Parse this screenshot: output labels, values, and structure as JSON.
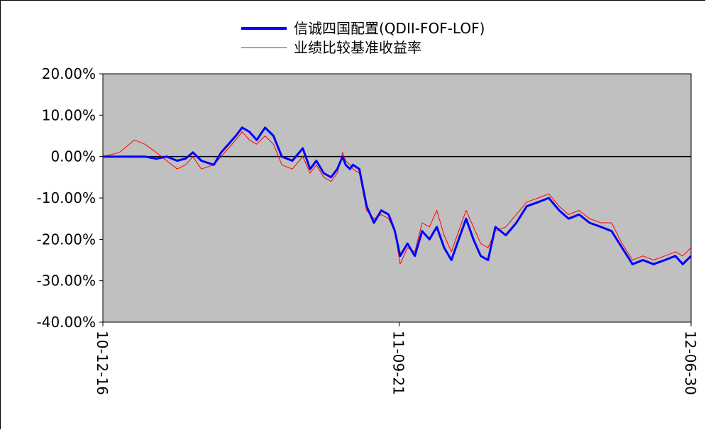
{
  "chart_data": {
    "type": "line",
    "title": "",
    "xlabel": "",
    "ylabel": "",
    "ylim": [
      -40,
      20
    ],
    "y_unit": "%",
    "yticks": [
      "20.00%",
      "10.00%",
      "0.00%",
      "-10.00%",
      "-20.00%",
      "-30.00%",
      "-40.00%"
    ],
    "ytick_values": [
      20,
      10,
      0,
      -10,
      -20,
      -30,
      -40
    ],
    "xticks": [
      "10-12-16",
      "11-09-21",
      "12-06-30"
    ],
    "x_range": [
      "2010-12-16",
      "2012-06-30"
    ],
    "legend_position": "top-center",
    "grid": false,
    "background_color": "#c0c0c0",
    "series": [
      {
        "name": "信诚四国配置(QDII-FOF-LOF)",
        "color": "#0000ff",
        "x": [
          "2010-12-16",
          "2011-01-01",
          "2011-01-15",
          "2011-01-25",
          "2011-02-05",
          "2011-02-15",
          "2011-02-25",
          "2011-03-05",
          "2011-03-12",
          "2011-03-20",
          "2011-04-01",
          "2011-04-08",
          "2011-04-15",
          "2011-04-22",
          "2011-04-28",
          "2011-05-05",
          "2011-05-12",
          "2011-05-20",
          "2011-05-28",
          "2011-06-05",
          "2011-06-15",
          "2011-06-25",
          "2011-07-02",
          "2011-07-08",
          "2011-07-15",
          "2011-07-22",
          "2011-07-28",
          "2011-08-02",
          "2011-08-05",
          "2011-08-09",
          "2011-08-12",
          "2011-08-18",
          "2011-08-25",
          "2011-09-01",
          "2011-09-08",
          "2011-09-15",
          "2011-09-21",
          "2011-09-26",
          "2011-10-03",
          "2011-10-10",
          "2011-10-17",
          "2011-10-24",
          "2011-10-31",
          "2011-11-07",
          "2011-11-14",
          "2011-11-21",
          "2011-11-28",
          "2011-12-05",
          "2011-12-12",
          "2011-12-19",
          "2011-12-26",
          "2012-01-05",
          "2012-01-15",
          "2012-01-25",
          "2012-02-05",
          "2012-02-15",
          "2012-02-25",
          "2012-03-05",
          "2012-03-15",
          "2012-03-25",
          "2012-04-05",
          "2012-04-15",
          "2012-04-25",
          "2012-05-05",
          "2012-05-15",
          "2012-05-25",
          "2012-06-05",
          "2012-06-15",
          "2012-06-22",
          "2012-06-30"
        ],
        "values": [
          0,
          0,
          0,
          0,
          -0.5,
          0,
          -1,
          -0.5,
          1,
          -1,
          -2,
          1,
          3,
          5,
          7,
          6,
          4,
          7,
          5,
          0,
          -1,
          2,
          -3,
          -1,
          -4,
          -5,
          -3,
          0,
          -2,
          -3,
          -2,
          -3,
          -12,
          -16,
          -13,
          -14,
          -18,
          -24,
          -21,
          -24,
          -18,
          -20,
          -17,
          -22,
          -25,
          -20,
          -15,
          -20,
          -24,
          -25,
          -17,
          -19,
          -16,
          -12,
          -11,
          -10,
          -13,
          -15,
          -14,
          -16,
          -17,
          -18,
          -22,
          -26,
          -25,
          -26,
          -25,
          -24,
          -26,
          -24
        ]
      },
      {
        "name": "业绩比较基准收益率",
        "color": "#ff0000",
        "x": [
          "2010-12-16",
          "2011-01-01",
          "2011-01-15",
          "2011-01-25",
          "2011-02-05",
          "2011-02-15",
          "2011-02-25",
          "2011-03-05",
          "2011-03-12",
          "2011-03-20",
          "2011-04-01",
          "2011-04-08",
          "2011-04-15",
          "2011-04-22",
          "2011-04-28",
          "2011-05-05",
          "2011-05-12",
          "2011-05-20",
          "2011-05-28",
          "2011-06-05",
          "2011-06-15",
          "2011-06-25",
          "2011-07-02",
          "2011-07-08",
          "2011-07-15",
          "2011-07-22",
          "2011-07-28",
          "2011-08-02",
          "2011-08-05",
          "2011-08-09",
          "2011-08-12",
          "2011-08-18",
          "2011-08-25",
          "2011-09-01",
          "2011-09-08",
          "2011-09-15",
          "2011-09-21",
          "2011-09-26",
          "2011-10-03",
          "2011-10-10",
          "2011-10-17",
          "2011-10-24",
          "2011-10-31",
          "2011-11-07",
          "2011-11-14",
          "2011-11-21",
          "2011-11-28",
          "2011-12-05",
          "2011-12-12",
          "2011-12-19",
          "2011-12-26",
          "2012-01-05",
          "2012-01-15",
          "2012-01-25",
          "2012-02-05",
          "2012-02-15",
          "2012-02-25",
          "2012-03-05",
          "2012-03-15",
          "2012-03-25",
          "2012-04-05",
          "2012-04-15",
          "2012-04-25",
          "2012-05-05",
          "2012-05-15",
          "2012-05-25",
          "2012-06-05",
          "2012-06-15",
          "2012-06-22",
          "2012-06-30"
        ],
        "values": [
          0,
          1,
          4,
          3,
          1,
          -1,
          -3,
          -2,
          0,
          -3,
          -2,
          0,
          2,
          4,
          6,
          4,
          3,
          5,
          3,
          -2,
          -3,
          0,
          -4,
          -2,
          -5,
          -6,
          -4,
          1,
          -1,
          -2,
          -3,
          -4,
          -13,
          -15,
          -14,
          -15,
          -18,
          -26,
          -22,
          -23,
          -16,
          -17,
          -13,
          -19,
          -23,
          -18,
          -13,
          -17,
          -21,
          -22,
          -18,
          -17,
          -14,
          -11,
          -10,
          -9,
          -12,
          -14,
          -13,
          -15,
          -16,
          -16,
          -21,
          -25,
          -24,
          -25,
          -24,
          -23,
          -24,
          -22
        ]
      }
    ]
  }
}
